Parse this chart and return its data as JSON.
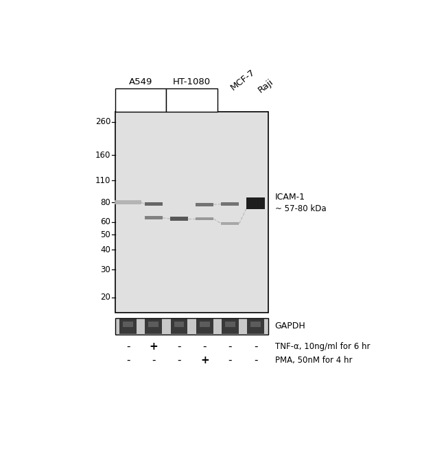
{
  "white": "#ffffff",
  "black": "#000000",
  "blot_bg": "#e0e0e0",
  "gapdh_bg": "#cccccc",
  "mw_labels": [
    "260",
    "160",
    "110",
    "80",
    "60",
    "50",
    "40",
    "30",
    "20"
  ],
  "mw_values": [
    260,
    160,
    110,
    80,
    60,
    50,
    40,
    30,
    20
  ],
  "cell_labels": [
    "A549",
    "HT-1080",
    "MCF-7",
    "Raji"
  ],
  "lane_labels_tnf": [
    "-",
    "+",
    "-",
    "-",
    "-",
    "-"
  ],
  "lane_labels_pma": [
    "-",
    "-",
    "-",
    "+",
    "-",
    "-"
  ],
  "icam1_label": "ICAM-1",
  "icam1_sublabel": "~ 57-80 kDa",
  "gapdh_label": "GAPDH",
  "tnf_label": "TNF-α, 10ng/ml for 6 hr",
  "pma_label": "PMA, 50nM for 4 hr"
}
